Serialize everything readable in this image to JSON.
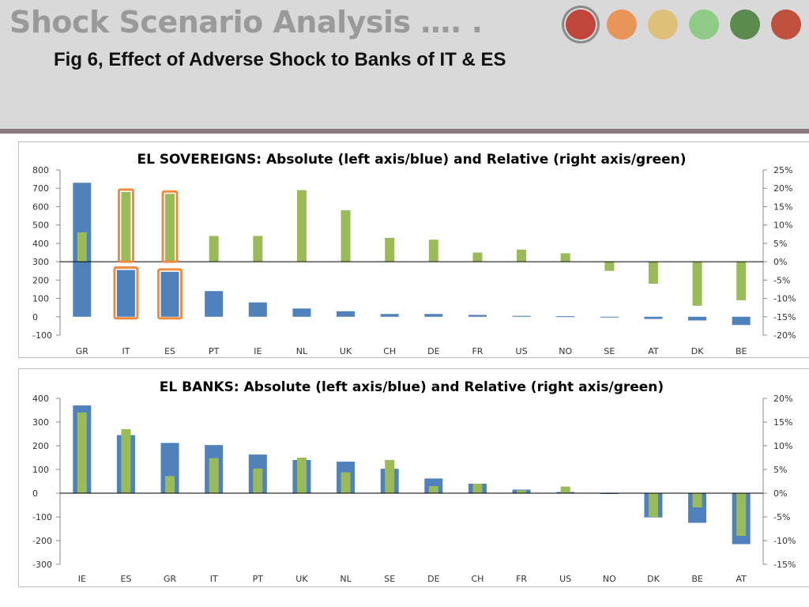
{
  "slide": {
    "title": "Shock Scenario Analysis …. .",
    "subtitle": "Fig 6, Effect of Adverse Shock to Banks of IT & ES",
    "nav_dots": [
      {
        "name": "nav-dot-1",
        "color": "#c0453a",
        "active": true
      },
      {
        "name": "nav-dot-2",
        "color": "#e8955a",
        "active": false
      },
      {
        "name": "nav-dot-3",
        "color": "#dfc07a",
        "active": false
      },
      {
        "name": "nav-dot-4",
        "color": "#8fcb86",
        "active": false
      },
      {
        "name": "nav-dot-5",
        "color": "#5a8a4e",
        "active": false
      },
      {
        "name": "nav-dot-6",
        "color": "#c0503e",
        "active": false
      }
    ]
  },
  "colors": {
    "absolute": "#4f81bd",
    "relative": "#9bbb59",
    "highlight": "#f08a3c",
    "axis": "#000000",
    "tick_text": "#333333"
  },
  "chart_data": [
    {
      "type": "bar",
      "title": "EL SOVEREIGNS: Absolute (left axis/blue) and Relative (right axis/green)",
      "categories": [
        "GR",
        "IT",
        "ES",
        "PT",
        "IE",
        "NL",
        "UK",
        "CH",
        "DE",
        "FR",
        "US",
        "NO",
        "SE",
        "AT",
        "DK",
        "BE"
      ],
      "left_axis": {
        "ylim": [
          -100,
          800
        ],
        "ticks": [
          800,
          700,
          600,
          500,
          400,
          300,
          200,
          100,
          0,
          -100
        ],
        "tick_labels": [
          "800",
          "700",
          "600",
          "500",
          "400",
          "300",
          "200",
          "100",
          "0",
          "-100"
        ]
      },
      "right_axis": {
        "ylim": [
          -20,
          25
        ],
        "ticks": [
          25,
          20,
          15,
          10,
          5,
          0,
          -5,
          -10,
          -15,
          -20
        ],
        "tick_labels": [
          "25%",
          "20%",
          "15%",
          "10%",
          "5%",
          "0%",
          "-5%",
          "-10%",
          "-15%",
          "-20%"
        ]
      },
      "series": [
        {
          "name": "Absolute",
          "axis": "left",
          "values": [
            730,
            255,
            245,
            140,
            78,
            45,
            30,
            15,
            15,
            10,
            5,
            3,
            -3,
            -12,
            -20,
            -45
          ]
        },
        {
          "name": "Relative",
          "axis": "right",
          "unit": "%",
          "values": [
            8,
            19,
            18.5,
            7,
            7,
            19.5,
            14,
            6.5,
            6,
            2.5,
            3.3,
            2.3,
            -2.5,
            -6,
            -12,
            -10.5
          ]
        }
      ],
      "highlighted_categories": [
        "IT",
        "ES"
      ],
      "grid": false
    },
    {
      "type": "bar",
      "title": "EL BANKS: Absolute (left axis/blue) and Relative (right axis/green)",
      "categories": [
        "IE",
        "ES",
        "GR",
        "IT",
        "PT",
        "UK",
        "NL",
        "SE",
        "DE",
        "CH",
        "FR",
        "US",
        "NO",
        "DK",
        "BE",
        "AT"
      ],
      "left_axis": {
        "ylim": [
          -300,
          400
        ],
        "ticks": [
          400,
          300,
          200,
          100,
          0,
          -100,
          -200,
          -300
        ],
        "tick_labels": [
          "400",
          "300",
          "200",
          "100",
          "0",
          "-100",
          "-200",
          "-300"
        ]
      },
      "right_axis": {
        "ylim": [
          -15,
          20
        ],
        "ticks": [
          20,
          15,
          10,
          5,
          0,
          -5,
          -10,
          -15
        ],
        "tick_labels": [
          "20%",
          "15%",
          "10%",
          "5%",
          "0%",
          "-5%",
          "-10%",
          "-15%"
        ]
      },
      "series": [
        {
          "name": "Absolute",
          "axis": "left",
          "values": [
            370,
            245,
            212,
            203,
            163,
            140,
            133,
            103,
            62,
            40,
            15,
            5,
            0,
            -102,
            -125,
            -215
          ]
        },
        {
          "name": "Relative",
          "axis": "right",
          "unit": "%",
          "values": [
            17,
            13.5,
            3.6,
            7.4,
            5.2,
            7.5,
            4.4,
            7,
            1.5,
            2,
            0.6,
            1.4,
            0.1,
            -5,
            -3,
            -9
          ]
        }
      ],
      "highlighted_categories": [],
      "grid": false
    }
  ]
}
